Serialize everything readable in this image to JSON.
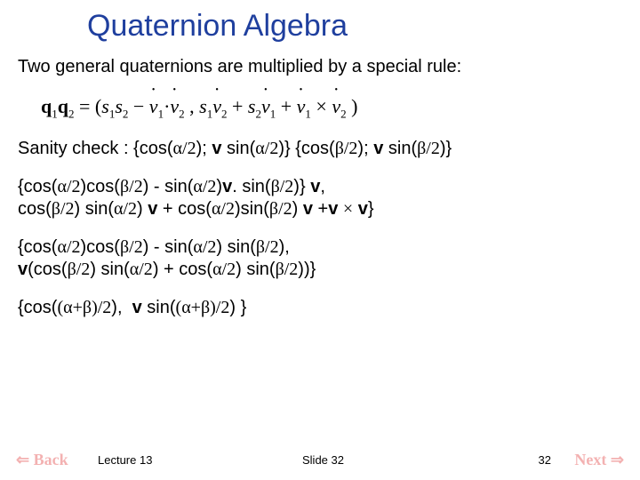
{
  "title": "Quaternion Algebra",
  "intro": "Two general quaternions are multiplied by a special rule:",
  "sanity_prefix": "Sanity check : {cos(",
  "line2_a": "{cos(",
  "footer": {
    "back": "⇐ Back",
    "next": "Next ⇒",
    "lecture": "Lecture 13",
    "slide": "Slide 32",
    "page": "32"
  },
  "colors": {
    "title": "#1f3f9e",
    "body": "#000000",
    "nav": "#d22",
    "background": "#ffffff"
  },
  "fonts": {
    "title_family": "Verdana",
    "title_size_pt": 26,
    "body_family": "Verdana",
    "body_size_pt": 15,
    "nav_family": "Comic Sans MS"
  }
}
